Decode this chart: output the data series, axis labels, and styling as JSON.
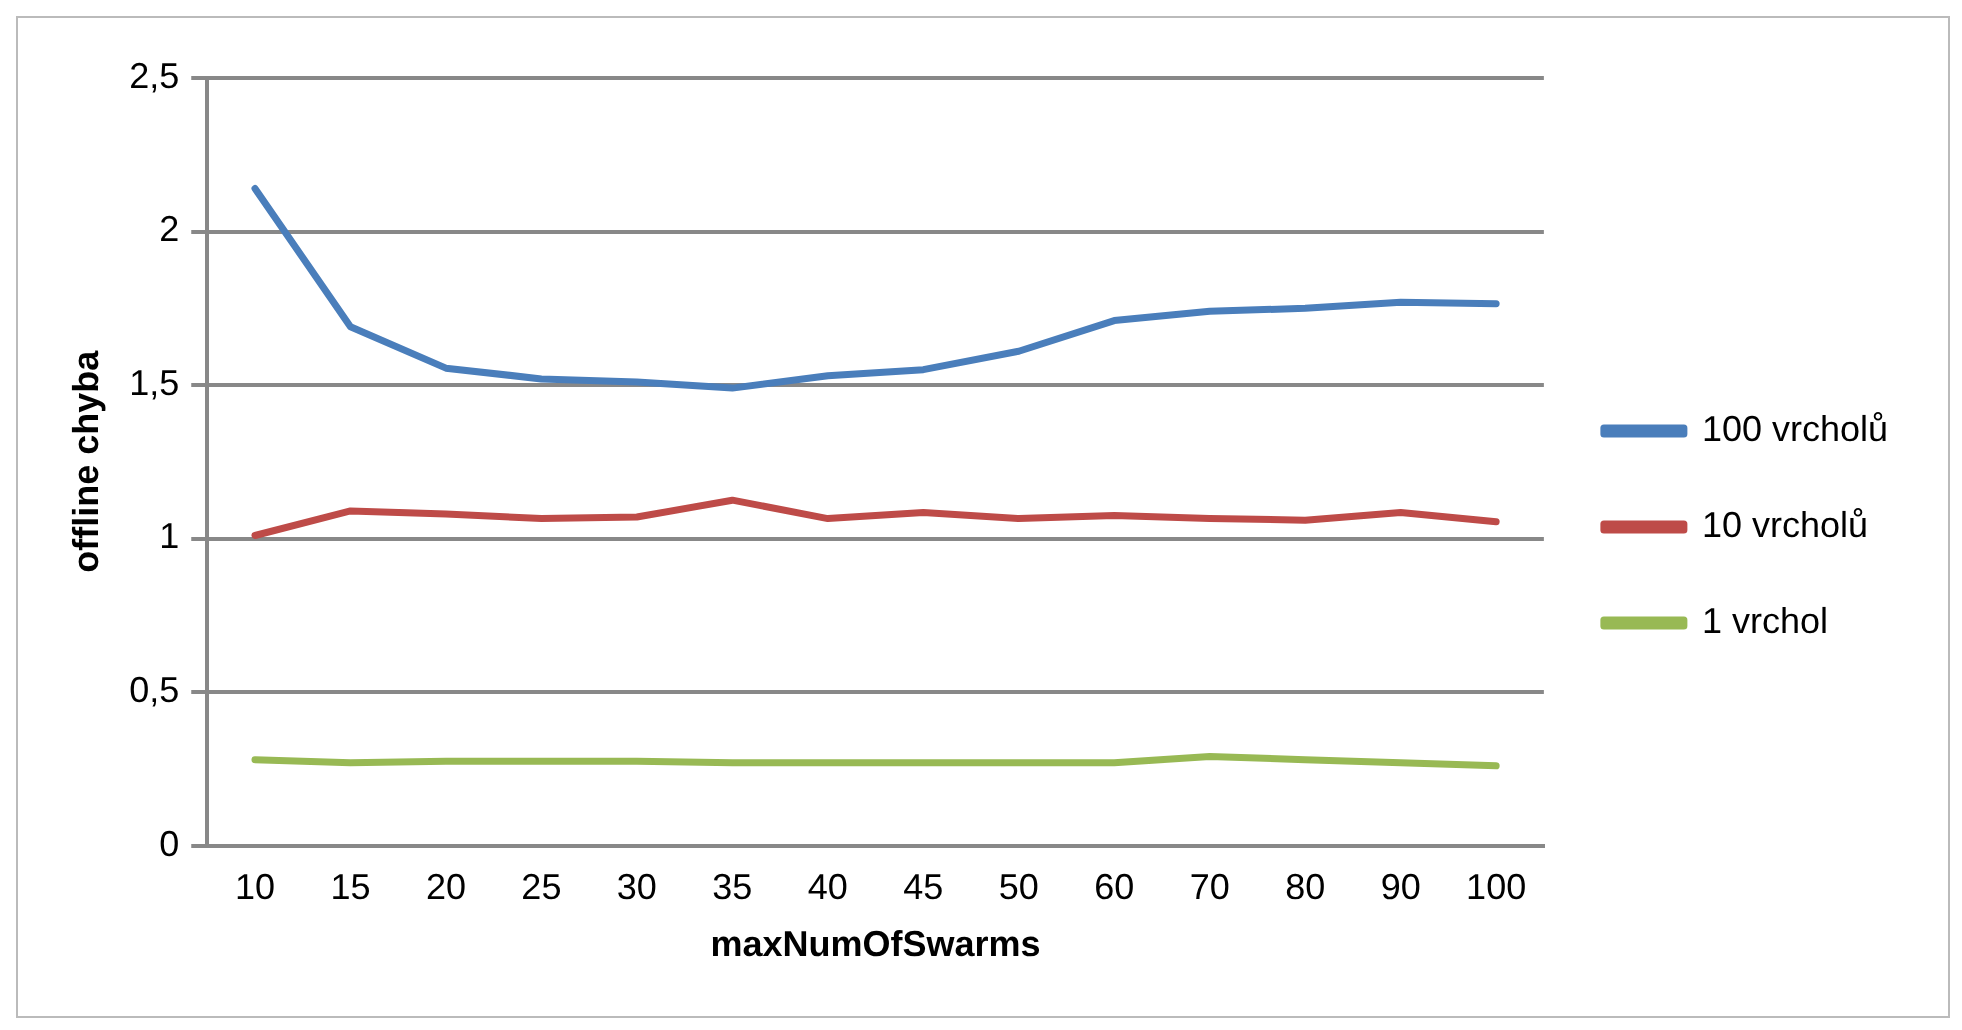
{
  "chart_data": {
    "type": "line",
    "xlabel": "maxNumOfSwarms",
    "ylabel": "offline chyba",
    "categories": [
      "10",
      "15",
      "20",
      "25",
      "30",
      "35",
      "40",
      "45",
      "50",
      "60",
      "70",
      "80",
      "90",
      "100"
    ],
    "series": [
      {
        "name": "100 vrcholů",
        "color": "#4a7ebb",
        "values": [
          2.14,
          1.69,
          1.555,
          1.52,
          1.51,
          1.49,
          1.53,
          1.55,
          1.61,
          1.71,
          1.74,
          1.75,
          1.77,
          1.765
        ]
      },
      {
        "name": "10 vrcholů",
        "color": "#be4b48",
        "values": [
          1.01,
          1.09,
          1.08,
          1.065,
          1.07,
          1.125,
          1.065,
          1.085,
          1.065,
          1.075,
          1.065,
          1.06,
          1.085,
          1.055
        ]
      },
      {
        "name": "1 vrchol",
        "color": "#98b954",
        "values": [
          0.28,
          0.27,
          0.275,
          0.275,
          0.275,
          0.27,
          0.27,
          0.27,
          0.27,
          0.27,
          0.29,
          0.28,
          0.27,
          0.26
        ]
      }
    ],
    "ylim": [
      0,
      2.5
    ],
    "yticks": [
      0,
      {
        "value": 0.5,
        "label": "0,5"
      },
      1,
      {
        "value": 1.5,
        "label": "1,5"
      },
      2,
      {
        "value": 2.5,
        "label": "2,5"
      }
    ],
    "grid": "y",
    "legend": "right",
    "marker": "none",
    "line_style": "solid"
  }
}
